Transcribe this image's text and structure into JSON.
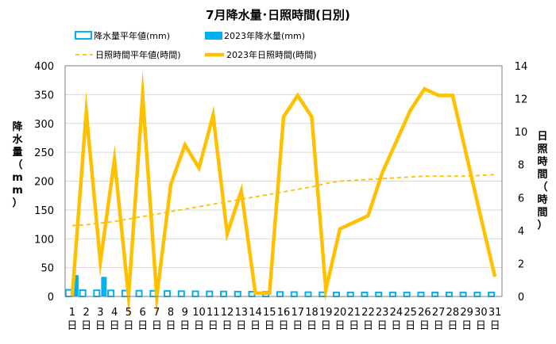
{
  "chart_data": {
    "type": "bar+line",
    "title": "7月降水量･日照時間(日別)",
    "categories": [
      "1",
      "2",
      "3",
      "4",
      "5",
      "6",
      "7",
      "8",
      "9",
      "10",
      "11",
      "12",
      "13",
      "14",
      "15",
      "16",
      "17",
      "18",
      "19",
      "20",
      "21",
      "22",
      "23",
      "24",
      "25",
      "26",
      "27",
      "28",
      "29",
      "30",
      "31"
    ],
    "category_suffix": "日",
    "ylabel_left": "降水量（mm）",
    "ylabel_right": "日照時間（時間）",
    "ylim_left": [
      0,
      400
    ],
    "yticks_left": [
      0,
      50,
      100,
      150,
      200,
      250,
      300,
      350,
      400
    ],
    "ylim_right": [
      0,
      14
    ],
    "yticks_right": [
      0,
      2,
      4,
      6,
      8,
      10,
      12,
      14
    ],
    "legend_position": "top",
    "series": [
      {
        "name": "降水量平年値(mm)",
        "kind": "bar-outline",
        "axis": "left",
        "color": "#00b0f0",
        "values": [
          11.5,
          11,
          10.8,
          10.5,
          10.2,
          10,
          9.8,
          9.5,
          9.2,
          9,
          8.8,
          8.6,
          8.4,
          8.2,
          8,
          7.8,
          7.6,
          7.4,
          7.2,
          7,
          7,
          7,
          7,
          7,
          7,
          7,
          7,
          7,
          7,
          7,
          7
        ]
      },
      {
        "name": "2023年降水量(mm)",
        "kind": "bar",
        "axis": "left",
        "color": "#00b0f0",
        "values": [
          37,
          0,
          34,
          0,
          0,
          0,
          0,
          0,
          0,
          0,
          0,
          0,
          0,
          0,
          0,
          0,
          0,
          0,
          0,
          0,
          0,
          0,
          0,
          0,
          0,
          0,
          0,
          0,
          0,
          0,
          0
        ]
      },
      {
        "name": "日照時間平年値(時間)",
        "kind": "line-dashed",
        "axis": "right",
        "color": "#ffc000",
        "values": [
          4.3,
          4.35,
          4.45,
          4.55,
          4.7,
          4.85,
          5.0,
          5.15,
          5.3,
          5.45,
          5.6,
          5.75,
          5.9,
          6.05,
          6.2,
          6.35,
          6.5,
          6.65,
          6.85,
          7.0,
          7.05,
          7.1,
          7.15,
          7.2,
          7.25,
          7.3,
          7.3,
          7.3,
          7.3,
          7.35,
          7.4
        ]
      },
      {
        "name": "2023年日照時間(時間)",
        "kind": "line",
        "axis": "right",
        "color": "#ffc000",
        "values": [
          0,
          11.2,
          2.1,
          8.3,
          0,
          12.2,
          0,
          6.8,
          9.2,
          7.8,
          11,
          3.8,
          6.4,
          0.2,
          0.2,
          10.9,
          12.2,
          10.9,
          0.4,
          4.1,
          4.5,
          4.9,
          7.5,
          9.4,
          11.3,
          12.6,
          12.2,
          12.2,
          8.5,
          4.8,
          1.2
        ]
      }
    ]
  }
}
